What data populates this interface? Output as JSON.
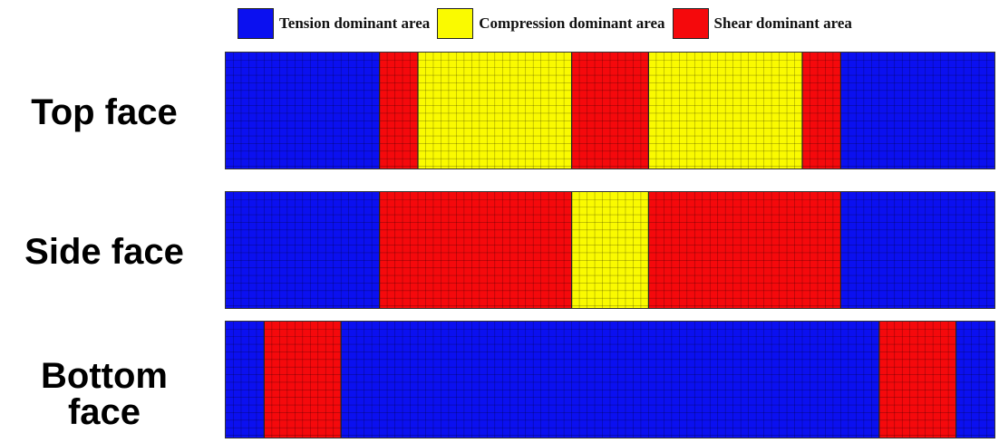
{
  "legend": {
    "items": [
      {
        "label": "Tension dominant area",
        "color": "#0b10f0"
      },
      {
        "label": "Compression dominant area",
        "color": "#fafa00"
      },
      {
        "label": "Shear dominant area",
        "color": "#f5090c"
      }
    ]
  },
  "colors": {
    "tension": "#0b10f0",
    "compression": "#fafa00",
    "shear": "#f5090c"
  },
  "faces": [
    {
      "label": "Top face",
      "segments": [
        {
          "type": "tension",
          "from": 0,
          "to": 0.2
        },
        {
          "type": "shear",
          "from": 0.2,
          "to": 0.25
        },
        {
          "type": "compression",
          "from": 0.25,
          "to": 0.45
        },
        {
          "type": "shear",
          "from": 0.45,
          "to": 0.55
        },
        {
          "type": "compression",
          "from": 0.55,
          "to": 0.75
        },
        {
          "type": "shear",
          "from": 0.75,
          "to": 0.8
        },
        {
          "type": "tension",
          "from": 0.8,
          "to": 1
        }
      ]
    },
    {
      "label": "Side face",
      "segments": [
        {
          "type": "tension",
          "from": 0,
          "to": 0.2
        },
        {
          "type": "shear",
          "from": 0.2,
          "to": 0.45
        },
        {
          "type": "compression",
          "from": 0.45,
          "to": 0.55
        },
        {
          "type": "shear",
          "from": 0.55,
          "to": 0.8
        },
        {
          "type": "tension",
          "from": 0.8,
          "to": 1
        }
      ]
    },
    {
      "label": "Bottom face",
      "segments": [
        {
          "type": "tension",
          "from": 0,
          "to": 0.05
        },
        {
          "type": "shear",
          "from": 0.05,
          "to": 0.15
        },
        {
          "type": "tension",
          "from": 0.15,
          "to": 0.85
        },
        {
          "type": "shear",
          "from": 0.85,
          "to": 0.95
        },
        {
          "type": "tension",
          "from": 0.95,
          "to": 1
        }
      ]
    }
  ]
}
